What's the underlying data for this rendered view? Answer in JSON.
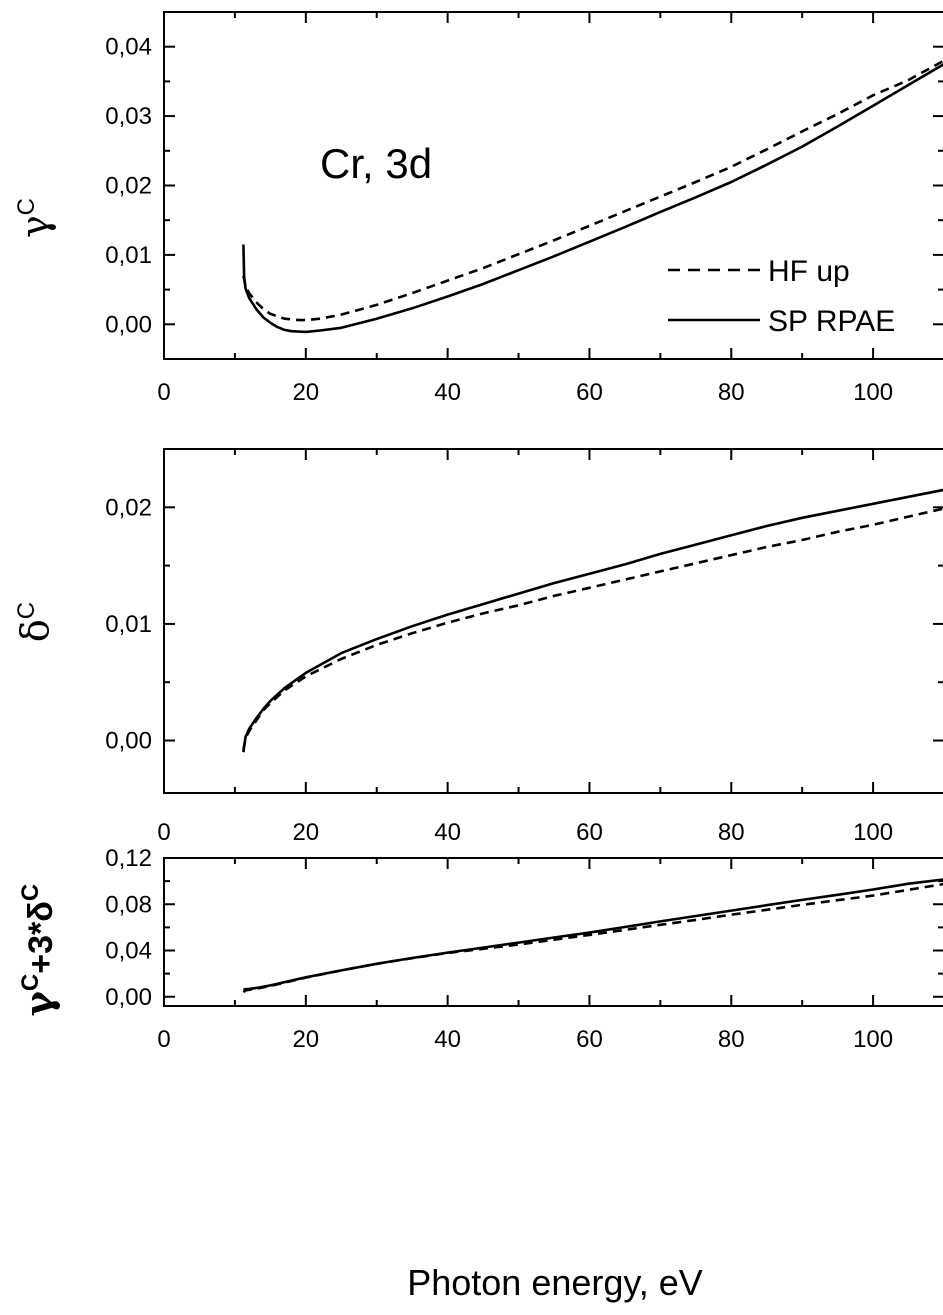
{
  "chart_data": [
    {
      "type": "line",
      "panel": "top",
      "ylabel_main": "γ",
      "ylabel_sup": "C",
      "annotation": "Cr, 3d",
      "xlim": [
        0,
        110
      ],
      "ylim": [
        -0.005,
        0.045
      ],
      "xticks": [
        "0",
        "20",
        "40",
        "60",
        "80",
        "100"
      ],
      "yticks": [
        "0,00",
        "0,01",
        "0,02",
        "0,03",
        "0,04"
      ],
      "legend_position": "bottom-right",
      "series": [
        {
          "name": "HF up",
          "style": "dashed",
          "x": [
            11.2,
            11.5,
            12,
            13,
            14,
            15,
            17,
            19,
            20,
            22,
            25,
            30,
            35,
            40,
            45,
            50,
            55,
            60,
            65,
            70,
            75,
            80,
            85,
            90,
            95,
            100,
            105,
            110
          ],
          "y": [
            0.007,
            0.0055,
            0.0045,
            0.0032,
            0.0022,
            0.0015,
            0.0008,
            0.0006,
            0.0006,
            0.0008,
            0.0014,
            0.0028,
            0.0045,
            0.0063,
            0.0081,
            0.0101,
            0.0121,
            0.0142,
            0.0163,
            0.0184,
            0.0205,
            0.0227,
            0.0252,
            0.0278,
            0.0303,
            0.033,
            0.0352,
            0.038
          ]
        },
        {
          "name": "SP RPAE",
          "style": "solid",
          "x": [
            11.2,
            11.3,
            11.5,
            12,
            13,
            14,
            15,
            16,
            17,
            18,
            20,
            22,
            25,
            30,
            35,
            40,
            45,
            50,
            55,
            60,
            65,
            70,
            75,
            80,
            85,
            90,
            95,
            100,
            105,
            110
          ],
          "y": [
            0.0115,
            0.007,
            0.0052,
            0.0038,
            0.0022,
            0.001,
            0.0002,
            -0.0004,
            -0.0008,
            -0.001,
            -0.0011,
            -0.0009,
            -0.0005,
            0.0008,
            0.0023,
            0.004,
            0.0058,
            0.0078,
            0.0098,
            0.0119,
            0.014,
            0.0162,
            0.0183,
            0.0205,
            0.023,
            0.0256,
            0.0285,
            0.0315,
            0.0345,
            0.0375
          ]
        }
      ]
    },
    {
      "type": "line",
      "panel": "middle",
      "ylabel_main": "δ",
      "ylabel_sup": "C",
      "xlim": [
        0,
        110
      ],
      "ylim": [
        -0.0045,
        0.025
      ],
      "xticks": [
        "0",
        "20",
        "40",
        "60",
        "80",
        "100"
      ],
      "yticks": [
        "0,00",
        "0,01",
        "0,02"
      ],
      "series": [
        {
          "name": "HF up",
          "style": "dashed",
          "x": [
            11.2,
            11.5,
            12,
            13,
            14,
            15,
            17,
            20,
            25,
            30,
            35,
            40,
            45,
            50,
            55,
            60,
            65,
            70,
            75,
            80,
            85,
            90,
            95,
            100,
            105,
            110
          ],
          "y": [
            -0.0008,
            0.0002,
            0.0008,
            0.0017,
            0.0026,
            0.0032,
            0.0043,
            0.0055,
            0.007,
            0.0082,
            0.0092,
            0.0101,
            0.0109,
            0.0116,
            0.0124,
            0.0131,
            0.0138,
            0.0145,
            0.0152,
            0.0159,
            0.0166,
            0.0172,
            0.0179,
            0.0185,
            0.0192,
            0.0199
          ]
        },
        {
          "name": "SP RPAE",
          "style": "solid",
          "x": [
            11.2,
            11.5,
            12,
            13,
            14,
            15,
            17,
            20,
            25,
            30,
            35,
            40,
            45,
            50,
            55,
            60,
            65,
            70,
            75,
            80,
            85,
            90,
            95,
            100,
            105,
            110
          ],
          "y": [
            -0.001,
            0.0003,
            0.001,
            0.0019,
            0.0027,
            0.0034,
            0.0045,
            0.0058,
            0.0075,
            0.0087,
            0.0098,
            0.0108,
            0.0117,
            0.0126,
            0.0135,
            0.0143,
            0.0151,
            0.016,
            0.0168,
            0.0176,
            0.0184,
            0.0191,
            0.0197,
            0.0203,
            0.0209,
            0.0215
          ]
        }
      ]
    },
    {
      "type": "line",
      "panel": "bottom",
      "ylabel_text": "γ",
      "ylabel_sup1": "C",
      "ylabel_mid": "+3*δ",
      "ylabel_sup2": "C",
      "xlabel": "Photon energy, eV",
      "xlim": [
        0,
        110
      ],
      "ylim": [
        -0.008,
        0.12
      ],
      "xticks": [
        "0",
        "20",
        "40",
        "60",
        "80",
        "100"
      ],
      "yticks": [
        "0,00",
        "0,04",
        "0,08",
        "0,12"
      ],
      "series": [
        {
          "name": "HF up",
          "style": "dashed",
          "x": [
            11.2,
            11.5,
            12,
            13,
            15,
            20,
            25,
            30,
            35,
            40,
            45,
            50,
            55,
            60,
            65,
            70,
            75,
            80,
            85,
            90,
            95,
            100,
            105,
            110
          ],
          "y": [
            0.004,
            0.0055,
            0.006,
            0.007,
            0.0093,
            0.0166,
            0.0228,
            0.0285,
            0.0333,
            0.0378,
            0.0415,
            0.0452,
            0.0493,
            0.0535,
            0.0578,
            0.0622,
            0.0665,
            0.071,
            0.0752,
            0.0795,
            0.0835,
            0.0875,
            0.0925,
            0.0975
          ]
        },
        {
          "name": "SP RPAE",
          "style": "solid",
          "x": [
            11.2,
            11.5,
            12,
            13,
            15,
            20,
            25,
            30,
            35,
            40,
            45,
            50,
            55,
            60,
            65,
            70,
            75,
            80,
            85,
            90,
            95,
            100,
            105,
            110
          ],
          "y": [
            0.006,
            0.0065,
            0.0068,
            0.0076,
            0.0098,
            0.0168,
            0.0228,
            0.0285,
            0.0335,
            0.0382,
            0.0425,
            0.0468,
            0.0512,
            0.0555,
            0.0603,
            0.0652,
            0.0698,
            0.0745,
            0.0792,
            0.0838,
            0.0882,
            0.0928,
            0.0978,
            0.1015
          ]
        }
      ]
    }
  ]
}
